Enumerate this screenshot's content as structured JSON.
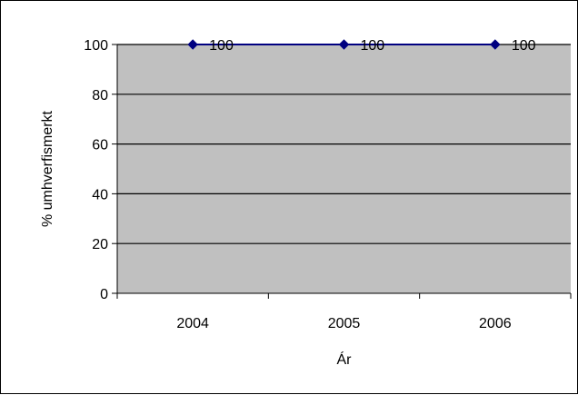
{
  "chart_data": {
    "type": "line",
    "categories": [
      "2004",
      "2005",
      "2006"
    ],
    "series": [
      {
        "values": [
          100,
          100,
          100
        ],
        "color": "#000080"
      }
    ],
    "data_labels": [
      "100",
      "100",
      "100"
    ],
    "xlabel": "Ár",
    "ylabel": "% umhverfismerkt",
    "ylim": [
      0,
      100
    ],
    "yticks": [
      "0",
      "20",
      "40",
      "60",
      "80",
      "100"
    ],
    "grid": true,
    "legend": "none",
    "plot_background": "#c0c0c0",
    "marker": "diamond"
  }
}
